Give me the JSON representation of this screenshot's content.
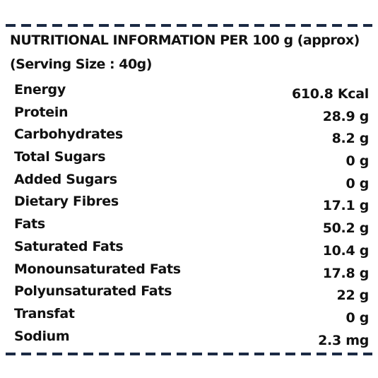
{
  "header": {
    "title": "NUTRITIONAL INFORMATION PER 100 g (approx)",
    "serving": "(Serving Size : 40g)"
  },
  "nutrients": [
    {
      "label": "Energy",
      "value": "610.8 Kcal"
    },
    {
      "label": "Protein",
      "value": "28.9 g"
    },
    {
      "label": "Carbohydrates",
      "value": "8.2 g"
    },
    {
      "label": "Total Sugars",
      "value": "0 g"
    },
    {
      "label": "Added Sugars",
      "value": "0 g"
    },
    {
      "label": "Dietary Fibres",
      "value": "17.1 g"
    },
    {
      "label": "Fats",
      "value": "50.2 g"
    },
    {
      "label": "Saturated Fats",
      "value": "10.4 g"
    },
    {
      "label": "Monounsaturated Fats",
      "value": "17.8 g"
    },
    {
      "label": "Polyunsaturated Fats",
      "value": "22 g"
    },
    {
      "label": "Transfat",
      "value": "0 g"
    },
    {
      "label": "Sodium",
      "value": "2.3 mg"
    }
  ],
  "colors": {
    "dash": "#1b2a44",
    "text": "#111111",
    "background": "#ffffff"
  }
}
